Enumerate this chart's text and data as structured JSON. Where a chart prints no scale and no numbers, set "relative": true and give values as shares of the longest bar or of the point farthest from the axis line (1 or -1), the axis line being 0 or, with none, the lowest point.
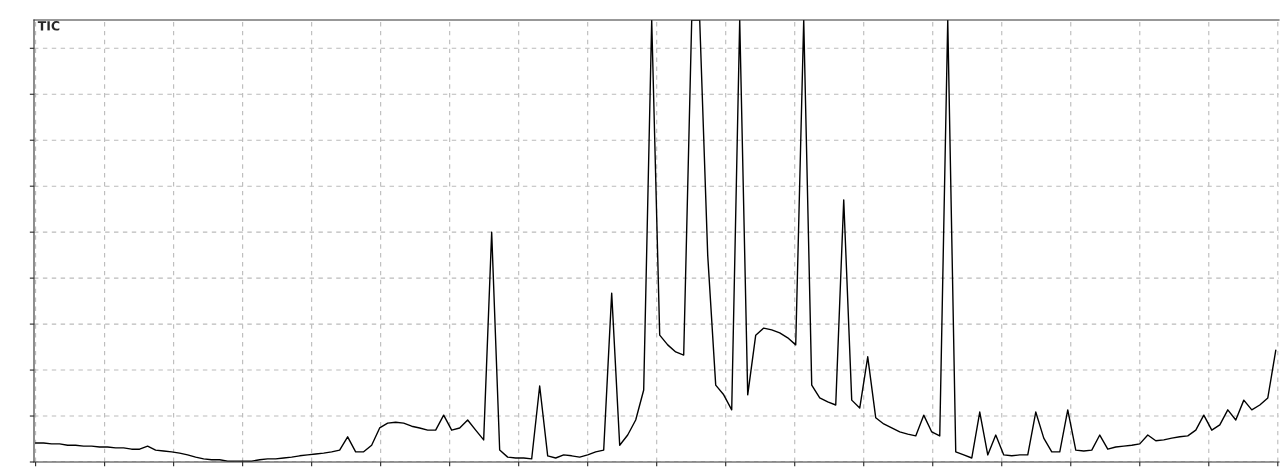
{
  "chart_data": {
    "type": "line",
    "relative": true,
    "grid": true,
    "tick_labels": false,
    "annotations": [
      "TIC"
    ],
    "categories": [
      null,
      null,
      null,
      null,
      null,
      null,
      null,
      null,
      null,
      null,
      null,
      null,
      null,
      null,
      null,
      null,
      null,
      null,
      null,
      null,
      null,
      null,
      null,
      null,
      null,
      null,
      null,
      null,
      null,
      null,
      null,
      null,
      null,
      null,
      null,
      null,
      null,
      null,
      null,
      null,
      null,
      null,
      null,
      null,
      null,
      null,
      null,
      null,
      null,
      null,
      null,
      null,
      null,
      null,
      null,
      null,
      null,
      null,
      null,
      null,
      null,
      null,
      null,
      null,
      null,
      null,
      null,
      null,
      null,
      null,
      null,
      null,
      null,
      null,
      null,
      null,
      null,
      null,
      null,
      null,
      null,
      null,
      null,
      null,
      null,
      null,
      null,
      null,
      null,
      null,
      null,
      null,
      null,
      null,
      null,
      null,
      null,
      null,
      null,
      null,
      null,
      null,
      null,
      null,
      null,
      null,
      null,
      null,
      null,
      null,
      null,
      null,
      null,
      null,
      null,
      null,
      null,
      null,
      null,
      null,
      null,
      null,
      null,
      null,
      null,
      null,
      null,
      null,
      null,
      null,
      null,
      null,
      null,
      null,
      null,
      null,
      null,
      null,
      null,
      null,
      null,
      null,
      null,
      null,
      null,
      null,
      null,
      null,
      null,
      null,
      null,
      null,
      null,
      null,
      null,
      null
    ],
    "series": [
      {
        "color": "#000000",
        "values": [
          0.043,
          0.043,
          0.041,
          0.041,
          0.038,
          0.038,
          0.036,
          0.036,
          0.034,
          0.034,
          0.032,
          0.032,
          0.029,
          0.029,
          0.036,
          0.027,
          0.025,
          0.023,
          0.02,
          0.016,
          0.011,
          0.007,
          0.005,
          0.005,
          0.002,
          0.002,
          0.002,
          0.002,
          0.005,
          0.007,
          0.007,
          0.009,
          0.011,
          0.014,
          0.016,
          0.018,
          0.02,
          0.023,
          0.027,
          0.057,
          0.023,
          0.023,
          0.038,
          0.077,
          0.088,
          0.09,
          0.088,
          0.081,
          0.077,
          0.072,
          0.072,
          0.106,
          0.072,
          0.077,
          0.095,
          0.072,
          0.05,
          0.52,
          0.027,
          0.011,
          0.009,
          0.009,
          0.007,
          0.172,
          0.014,
          0.009,
          0.016,
          0.014,
          0.011,
          0.016,
          0.023,
          0.027,
          0.382,
          0.038,
          0.061,
          0.095,
          0.163,
          1,
          0.287,
          0.265,
          0.249,
          0.242,
          1,
          1,
          0.468,
          0.174,
          0.152,
          0.118,
          1,
          0.152,
          0.287,
          0.303,
          0.299,
          0.292,
          0.281,
          0.265,
          1,
          0.174,
          0.145,
          0.136,
          0.129,
          0.593,
          0.14,
          0.122,
          0.238,
          0.1,
          0.086,
          0.077,
          0.068,
          0.063,
          0.059,
          0.106,
          0.068,
          0.059,
          1,
          0.023,
          0.016,
          0.009,
          0.113,
          0.016,
          0.061,
          0.016,
          0.014,
          0.016,
          0.016,
          0.113,
          0.054,
          0.023,
          0.023,
          0.118,
          0.027,
          0.025,
          0.027,
          0.061,
          0.029,
          0.034,
          0.036,
          0.038,
          0.041,
          0.061,
          0.048,
          0.05,
          0.054,
          0.057,
          0.059,
          0.072,
          0.106,
          0.072,
          0.084,
          0.118,
          0.095,
          0.14,
          0.118,
          0.129,
          0.145,
          0.253
        ]
      }
    ]
  }
}
